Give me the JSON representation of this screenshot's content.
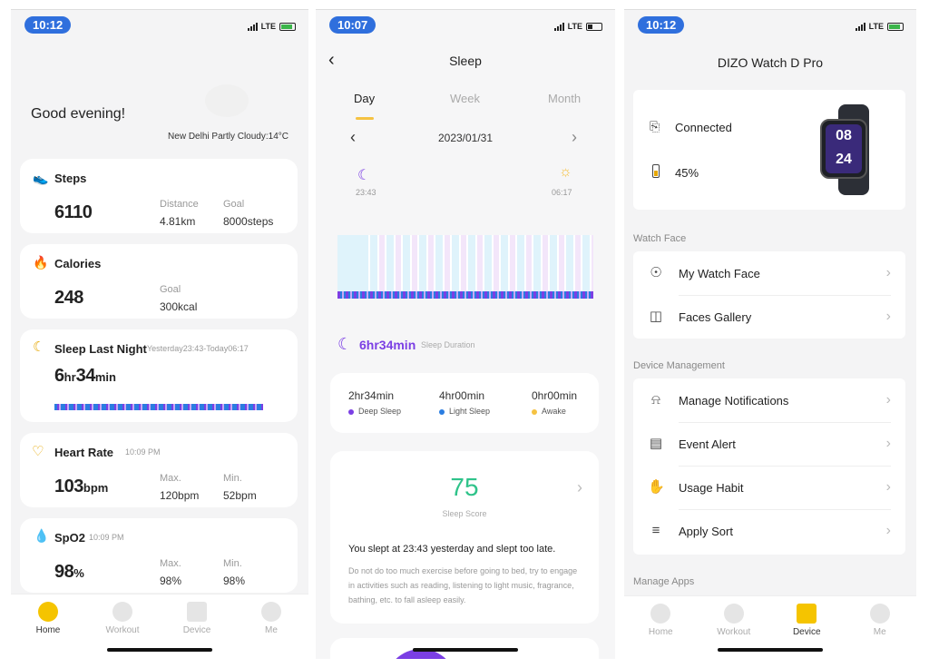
{
  "home": {
    "status_time": "10:12",
    "carrier": "LTE",
    "greeting": "Good evening!",
    "weather": "New Delhi Partly Cloudy:14°C",
    "steps": {
      "title": "Steps",
      "value": "6110",
      "distance_label": "Distance",
      "distance_value": "4.81km",
      "goal_label": "Goal",
      "goal_value": "8000steps"
    },
    "calories": {
      "title": "Calories",
      "value": "248",
      "goal_label": "Goal",
      "goal_value": "300kcal"
    },
    "sleep": {
      "title": "Sleep Last Night",
      "range": "Yesterday23:43-Today06:17",
      "hours": "6",
      "hr_unit": "hr",
      "mins": "34",
      "min_unit": "min"
    },
    "heart": {
      "title": "Heart Rate",
      "time": "10:09 PM",
      "value": "103",
      "unit": "bpm",
      "max_label": "Max.",
      "max_value": "120bpm",
      "min_label": "Min.",
      "min_value": "52bpm"
    },
    "spo2": {
      "title": "SpO2",
      "time": "10:09 PM",
      "value": "98",
      "unit": "%",
      "max_label": "Max.",
      "max_value": "98%",
      "min_label": "Min.",
      "min_value": "98%"
    },
    "tabs": [
      "Home",
      "Workout",
      "Device",
      "Me"
    ]
  },
  "sleep_screen": {
    "status_time": "10:07",
    "carrier": "LTE",
    "title": "Sleep",
    "tabs": [
      "Day",
      "Week",
      "Month"
    ],
    "date": "2023/01/31",
    "bed_time": "23:43",
    "wake_time": "06:17",
    "duration": "6hr34min",
    "duration_label": "Sleep Duration",
    "deep": {
      "value": "2hr34min",
      "label": "Deep Sleep"
    },
    "light": {
      "value": "4hr00min",
      "label": "Light Sleep"
    },
    "awake": {
      "value": "0hr00min",
      "label": "Awake"
    },
    "score": "75",
    "score_label": "Sleep Score",
    "advice_title": "You slept at 23:43 yesterday and slept too late.",
    "advice_body": "Do not do too much exercise before going to bed, try to engage in activities such as reading, listening to light music, fragrance, bathing, etc. to fall asleep easily.",
    "colors": {
      "deep": "#7b3fe4",
      "light": "#2a7de1",
      "awake": "#f5c242",
      "score": "#2fc38a"
    }
  },
  "device": {
    "status_time": "10:12",
    "carrier": "LTE",
    "title": "DIZO Watch D Pro",
    "connected": "Connected",
    "battery": "45%",
    "watch_time_top": "08",
    "watch_time_bottom": "24",
    "section_watch_face": "Watch Face",
    "my_watch_face": "My Watch Face",
    "faces_gallery": "Faces Gallery",
    "section_device_mgmt": "Device Management",
    "manage_notifications": "Manage Notifications",
    "event_alert": "Event Alert",
    "usage_habit": "Usage Habit",
    "apply_sort": "Apply Sort",
    "section_manage_apps": "Manage Apps",
    "tabs": [
      "Home",
      "Workout",
      "Device",
      "Me"
    ]
  }
}
